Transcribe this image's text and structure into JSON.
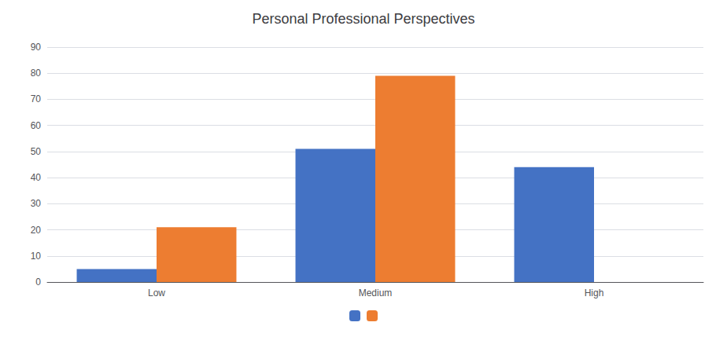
{
  "chart_data": {
    "type": "bar",
    "title": "Personal Professional Perspectives",
    "categories": [
      "Low",
      "Medium",
      "High"
    ],
    "series": [
      {
        "color": "#4472C4",
        "values": [
          5,
          51,
          44
        ]
      },
      {
        "color": "#ED7D31",
        "values": [
          21,
          79,
          0
        ]
      }
    ],
    "ylim": [
      0,
      90
    ],
    "yticks": [
      0,
      10,
      20,
      30,
      40,
      50,
      60,
      70,
      80,
      90
    ],
    "grid": true,
    "legend": "bottom"
  }
}
